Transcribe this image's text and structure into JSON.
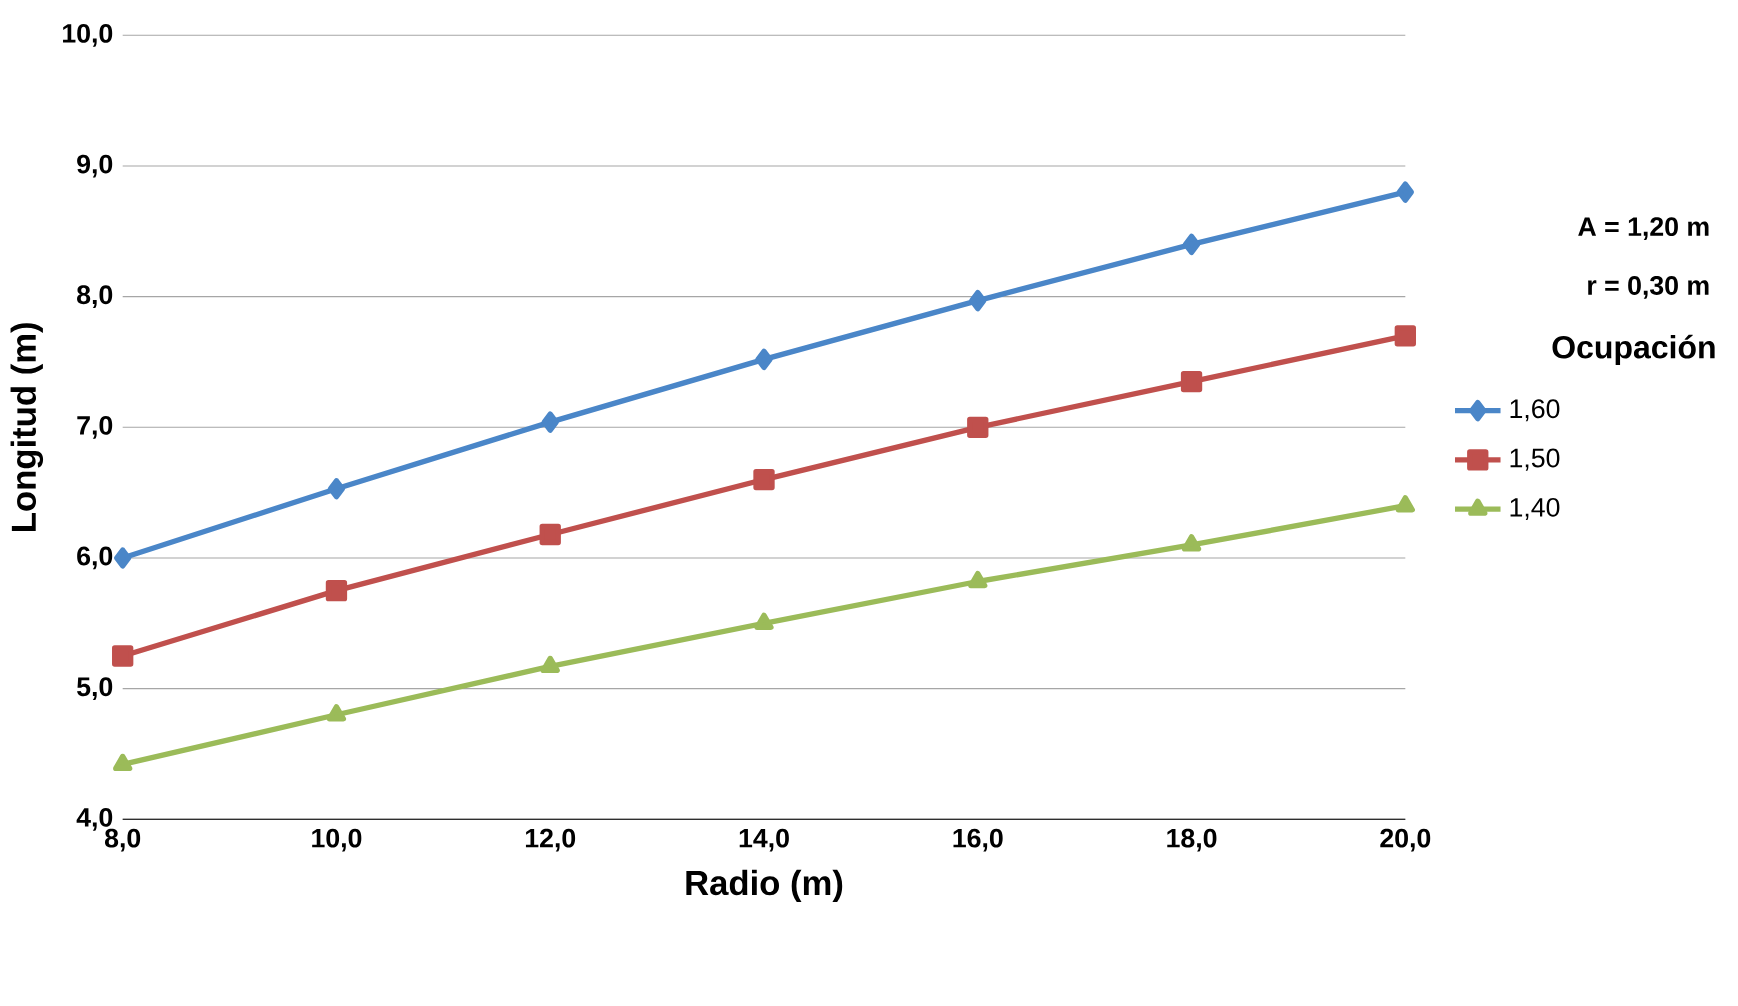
{
  "chart_data": {
    "type": "line",
    "xlabel": "Radio (m)",
    "ylabel": "Longitud (m)",
    "legend_title": "Ocupación",
    "annotations": [
      "A = 1,20 m",
      "r = 0,30 m"
    ],
    "x": [
      8,
      10,
      12,
      14,
      16,
      18,
      20
    ],
    "series": [
      {
        "name": "1,60",
        "color": "#4a86c8",
        "marker": "diamond",
        "values": [
          6.0,
          6.53,
          7.04,
          7.52,
          7.97,
          8.4,
          8.8
        ]
      },
      {
        "name": "1,50",
        "color": "#c0504d",
        "marker": "square",
        "values": [
          5.25,
          5.75,
          6.18,
          6.6,
          7.0,
          7.35,
          7.7
        ]
      },
      {
        "name": "1,40",
        "color": "#9bbb59",
        "marker": "triangle",
        "values": [
          4.42,
          4.8,
          5.17,
          5.5,
          5.82,
          6.1,
          6.4
        ]
      }
    ],
    "xlim": [
      8,
      20
    ],
    "ylim": [
      4,
      10
    ],
    "xticks": [
      {
        "value": 8,
        "label": "8,0"
      },
      {
        "value": 10,
        "label": "10,0"
      },
      {
        "value": 12,
        "label": "12,0"
      },
      {
        "value": 14,
        "label": "14,0"
      },
      {
        "value": 16,
        "label": "16,0"
      },
      {
        "value": 18,
        "label": "18,0"
      },
      {
        "value": 20,
        "label": "20,0"
      }
    ],
    "yticks": [
      {
        "value": 4,
        "label": "4,0"
      },
      {
        "value": 5,
        "label": "5,0"
      },
      {
        "value": 6,
        "label": "6,0"
      },
      {
        "value": 7,
        "label": "7,0"
      },
      {
        "value": 8,
        "label": "8,0"
      },
      {
        "value": 9,
        "label": "9,0"
      },
      {
        "value": 10,
        "label": "10,0"
      }
    ],
    "grid": "y",
    "legend": "right",
    "line_style": "solid"
  }
}
